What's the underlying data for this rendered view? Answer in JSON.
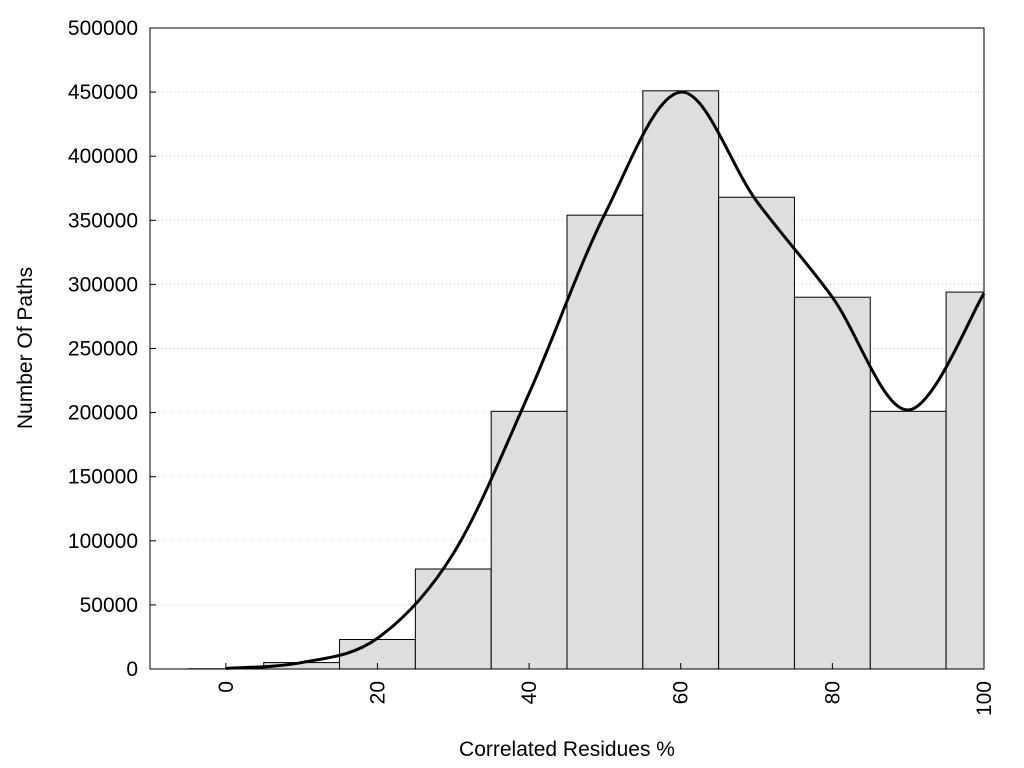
{
  "chart_data": {
    "type": "bar",
    "xlabel": "Correlated Residues %",
    "ylabel": "Number Of Paths",
    "xlim": [
      -10,
      100
    ],
    "ylim": [
      0,
      500000
    ],
    "x_ticks": [
      0,
      20,
      40,
      60,
      80,
      100
    ],
    "y_ticks": [
      0,
      50000,
      100000,
      150000,
      200000,
      250000,
      300000,
      350000,
      400000,
      450000,
      500000
    ],
    "grid": "horizontal dotted",
    "bin_width": 10,
    "bars": [
      {
        "x": 0,
        "value": 200
      },
      {
        "x": 10,
        "value": 5000
      },
      {
        "x": 20,
        "value": 23000
      },
      {
        "x": 30,
        "value": 78000
      },
      {
        "x": 40,
        "value": 201000
      },
      {
        "x": 50,
        "value": 354000
      },
      {
        "x": 60,
        "value": 451000
      },
      {
        "x": 70,
        "value": 368000
      },
      {
        "x": 80,
        "value": 290000
      },
      {
        "x": 90,
        "value": 201000
      },
      {
        "x": 100,
        "value": 294000
      }
    ],
    "curve": {
      "x": [
        0,
        10,
        20,
        30,
        40,
        50,
        60,
        70,
        80,
        90,
        100
      ],
      "y": [
        500,
        5000,
        24000,
        90000,
        215000,
        355000,
        450000,
        365000,
        290000,
        202000,
        293000
      ]
    },
    "colors": {
      "bar_fill": "#dedede",
      "bar_stroke": "#000000",
      "curve": "#000000",
      "grid": "#c8c8c8"
    }
  }
}
